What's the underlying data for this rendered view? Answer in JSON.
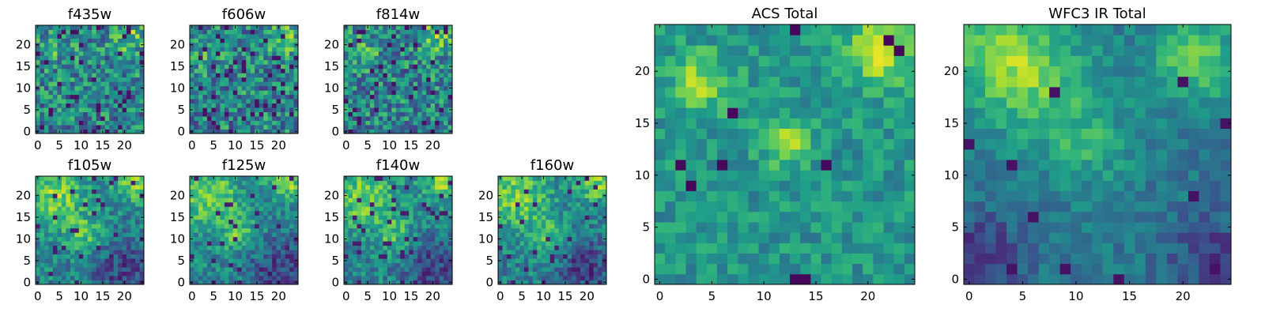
{
  "chart_data": [
    {
      "type": "heatmap",
      "title": "f435w",
      "seed": 11,
      "variant": "noisy",
      "cmap": "viridis",
      "grid_size": 25,
      "xticks": [
        "0",
        "5",
        "10",
        "15",
        "20"
      ],
      "yticks": [
        "0",
        "5",
        "10",
        "15",
        "20"
      ]
    },
    {
      "type": "heatmap",
      "title": "f606w",
      "seed": 23,
      "variant": "noisy",
      "cmap": "viridis",
      "grid_size": 25,
      "xticks": [
        "0",
        "5",
        "10",
        "15",
        "20"
      ],
      "yticks": [
        "0",
        "5",
        "10",
        "15",
        "20"
      ]
    },
    {
      "type": "heatmap",
      "title": "f814w",
      "seed": 37,
      "variant": "noisy",
      "cmap": "viridis",
      "grid_size": 25,
      "xticks": [
        "0",
        "5",
        "10",
        "15",
        "20"
      ],
      "yticks": [
        "0",
        "5",
        "10",
        "15",
        "20"
      ]
    },
    {
      "type": "heatmap",
      "title": "f105w",
      "seed": 41,
      "variant": "ir",
      "cmap": "viridis",
      "grid_size": 25,
      "xticks": [
        "0",
        "5",
        "10",
        "15",
        "20"
      ],
      "yticks": [
        "0",
        "5",
        "10",
        "15",
        "20"
      ]
    },
    {
      "type": "heatmap",
      "title": "f125w",
      "seed": 53,
      "variant": "ir",
      "cmap": "viridis",
      "grid_size": 25,
      "xticks": [
        "0",
        "5",
        "10",
        "15",
        "20"
      ],
      "yticks": [
        "0",
        "5",
        "10",
        "15",
        "20"
      ]
    },
    {
      "type": "heatmap",
      "title": "f140w",
      "seed": 67,
      "variant": "ir",
      "cmap": "viridis",
      "grid_size": 25,
      "xticks": [
        "0",
        "5",
        "10",
        "15",
        "20"
      ],
      "yticks": [
        "0",
        "5",
        "10",
        "15",
        "20"
      ]
    },
    {
      "type": "heatmap",
      "title": "f160w",
      "seed": 79,
      "variant": "ir",
      "cmap": "viridis",
      "grid_size": 25,
      "xticks": [
        "0",
        "5",
        "10",
        "15",
        "20"
      ],
      "yticks": [
        "0",
        "5",
        "10",
        "15",
        "20"
      ]
    },
    {
      "type": "heatmap",
      "title": "ACS Total",
      "seed": 97,
      "variant": "acs",
      "cmap": "viridis",
      "grid_size": 25,
      "xticks": [
        "0",
        "5",
        "10",
        "15",
        "20"
      ],
      "yticks": [
        "0",
        "5",
        "10",
        "15",
        "20"
      ]
    },
    {
      "type": "heatmap",
      "title": "WFC3 IR Total",
      "seed": 131,
      "variant": "wfc3",
      "cmap": "viridis",
      "grid_size": 25,
      "xticks": [
        "0",
        "5",
        "10",
        "15",
        "20"
      ],
      "yticks": [
        "0",
        "5",
        "10",
        "15",
        "20"
      ]
    }
  ]
}
